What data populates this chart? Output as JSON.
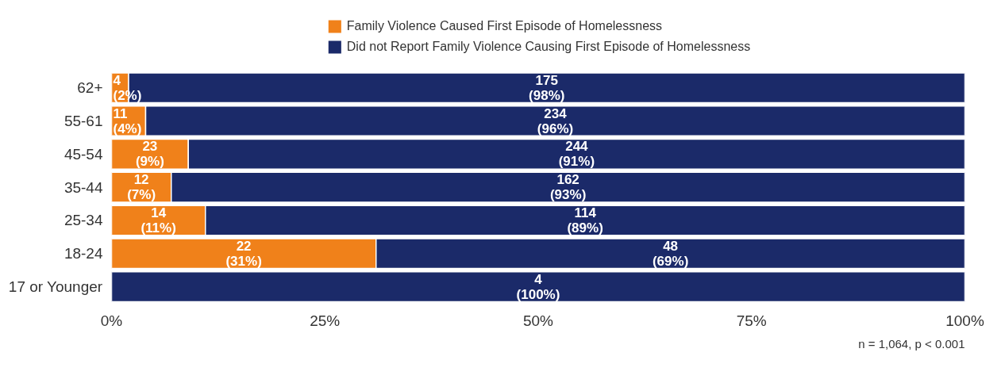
{
  "chart_data": {
    "type": "bar",
    "orientation": "horizontal",
    "stacked": true,
    "categories": [
      "62+",
      "55-61",
      "45-54",
      "35-44",
      "25-34",
      "18-24",
      "17 or Younger"
    ],
    "series": [
      {
        "name": "Family Violence Caused First Episode of Homelessness",
        "color": "#f0811a",
        "values": [
          2,
          4,
          9,
          7,
          11,
          31,
          0
        ],
        "value_labels": [
          "4\n(2%)",
          "11\n(4%)",
          "23\n(9%)",
          "12\n(7%)",
          "14\n(11%)",
          "22\n(31%)",
          null
        ]
      },
      {
        "name": "Did not Report Family Violence Causing First Episode of Homelessness",
        "color": "#1b2a69",
        "values": [
          98,
          96,
          91,
          93,
          89,
          69,
          100
        ],
        "value_labels": [
          "175\n(98%)",
          "234\n(96%)",
          "244\n(91%)",
          "162\n(93%)",
          "114\n(89%)",
          "48\n(69%)",
          "4\n(100%)"
        ]
      }
    ],
    "xlim": [
      0,
      100
    ],
    "xticks": [
      {
        "value": 0,
        "label": "0%"
      },
      {
        "value": 25,
        "label": "25%"
      },
      {
        "value": 50,
        "label": "50%"
      },
      {
        "value": 75,
        "label": "75%"
      },
      {
        "value": 100,
        "label": "100%"
      }
    ],
    "grid": false,
    "legend": "top",
    "annotations": [
      "n = 1,064, p < 0.001"
    ]
  }
}
